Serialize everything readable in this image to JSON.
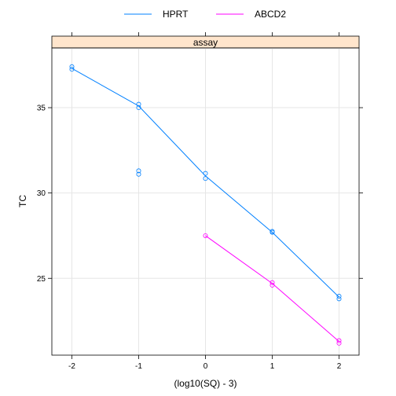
{
  "chart_data": {
    "type": "scatter",
    "strip_label": "assay",
    "xlabel": "(log10(SQ) - 3)",
    "ylabel": "TC",
    "xlim": [
      -2.3,
      2.3
    ],
    "ylim": [
      20.5,
      38.5
    ],
    "x_ticks": [
      -2,
      -1,
      0,
      1,
      2
    ],
    "y_ticks": [
      25,
      30,
      35
    ],
    "grid": true,
    "legend_position": "top",
    "series": [
      {
        "name": "HPRT",
        "color": "#0080ff",
        "points": [
          {
            "x": -2,
            "y": 37.4
          },
          {
            "x": -2,
            "y": 37.25
          },
          {
            "x": -1,
            "y": 35.2
          },
          {
            "x": -1,
            "y": 35.0
          },
          {
            "x": -1,
            "y": 31.3
          },
          {
            "x": -1,
            "y": 31.1
          },
          {
            "x": 0,
            "y": 31.15
          },
          {
            "x": 0,
            "y": 30.85
          },
          {
            "x": 1,
            "y": 27.75
          },
          {
            "x": 1,
            "y": 27.7
          },
          {
            "x": 2,
            "y": 23.95
          },
          {
            "x": 2,
            "y": 23.8
          }
        ],
        "line": [
          {
            "x": -2,
            "y": 37.3
          },
          {
            "x": -1,
            "y": 35.1
          },
          {
            "x": 0,
            "y": 31.0
          },
          {
            "x": 1,
            "y": 27.7
          },
          {
            "x": 2,
            "y": 23.9
          }
        ]
      },
      {
        "name": "ABCD2",
        "color": "#ff00ff",
        "points": [
          {
            "x": 0,
            "y": 27.5
          },
          {
            "x": 1,
            "y": 24.75
          },
          {
            "x": 1,
            "y": 24.6
          },
          {
            "x": 2,
            "y": 21.35
          },
          {
            "x": 2,
            "y": 21.2
          }
        ],
        "line": [
          {
            "x": 0,
            "y": 27.5
          },
          {
            "x": 1,
            "y": 24.7
          },
          {
            "x": 2,
            "y": 21.3
          }
        ]
      }
    ]
  }
}
